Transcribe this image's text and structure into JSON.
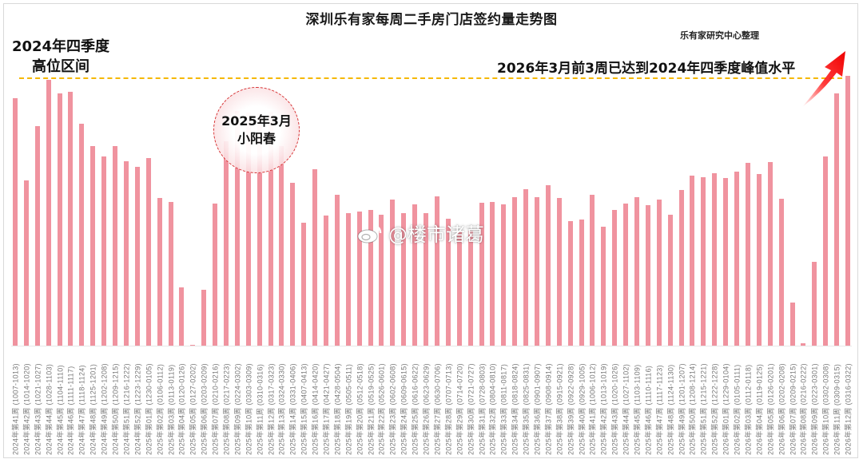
{
  "title": "深圳乐有家每周二手房门店签约量走势图",
  "source": "乐有家研究中心整理",
  "annotations": {
    "left_line1": "2024年四季度",
    "left_line2": "高位区间",
    "right_note": "2026年3月前3周已达到2024年四季度峰值水平",
    "bubble_line1": "2025年3月",
    "bubble_line2": "小阳春"
  },
  "watermark": "@楼市诸葛",
  "colors": {
    "bar": "#f0939f",
    "peak_line": "#f5b800",
    "bubble_border": "#d63031",
    "arrow": "#ff1a1a"
  },
  "chart_data": {
    "type": "bar",
    "title": "深圳乐有家每周二手房门店签约量走势图",
    "xlabel": "",
    "ylabel": "",
    "y_axis_shown": false,
    "value_unit": "relative bar height (px above baseline, no y-axis shown)",
    "grid": false,
    "legend": null,
    "reference_line": {
      "label": "2024年四季度高位区间 / 峰值水平",
      "value": 336,
      "style": "dash-dot",
      "color": "#f5b800"
    },
    "categories": [
      "2024年第41周 (1007-1013)",
      "2024年第42周 (1014-1020)",
      "2024年第43周 (1021-1027)",
      "2024年第44周 (1028-1103)",
      "2024年第45周 (1104-1110)",
      "2024年第46周 (1111-1117)",
      "2024年第47周 (1118-1124)",
      "2024年第48周 (1125-1201)",
      "2024年第49周 (1202-1208)",
      "2024年第50周 (1209-1215)",
      "2024年第51周 (1216-1222)",
      "2024年第52周 (1223-1229)",
      "2025年第01周 (1230-0105)",
      "2025年第02周 (0106-0112)",
      "2025年第03周 (0113-0119)",
      "2025年第04周 (0120-0126)",
      "2025年第05周 (0127-0202)",
      "2025年第06周 (0203-0209)",
      "2025年第07周 (0210-0216)",
      "2025年第08周 (0217-0223)",
      "2025年第09周 (0224-0302)",
      "2025年第10周 (0303-0309)",
      "2025年第11周 (0310-0316)",
      "2025年第12周 (0317-0323)",
      "2025年第13周 (0324-0330)",
      "2025年第14周 (0331-0406)",
      "2025年第15周 (0407-0413)",
      "2025年第16周 (0414-0420)",
      "2025年第17周 (0421-0427)",
      "2025年第18周 (0428-0504)",
      "2025年第19周 (0505-0511)",
      "2025年第20周 (0512-0518)",
      "2025年第21周 (0519-0525)",
      "2025年第22周 (0526-0601)",
      "2025年第23周 (0602-0608)",
      "2025年第24周 (0609-0615)",
      "2025年第25周 (0616-0622)",
      "2025年第26周 (0623-0629)",
      "2025年第27周 (0630-0706)",
      "2025年第28周 (0707-0713)",
      "2025年第29周 (0714-0720)",
      "2025年第30周 (0721-0727)",
      "2025年第31周 (0728-0803)",
      "2025年第32周 (0804-0810)",
      "2025年第33周 (0811-0817)",
      "2025年第34周 (0818-0824)",
      "2025年第35周 (0825-0831)",
      "2025年第36周 (0901-0907)",
      "2025年第37周 (0908-0914)",
      "2025年第38周 (0915-0921)",
      "2025年第39周 (0922-0928)",
      "2025年第40周 (0929-1005)",
      "2025年第41周 (1006-1012)",
      "2025年第42周 (1013-1019)",
      "2025年第43周 (1020-1026)",
      "2025年第44周 (1027-1102)",
      "2025年第45周 (1103-1109)",
      "2025年第46周 (1110-1116)",
      "2025年第47周 (1117-1123)",
      "2025年第48周 (1124-1130)",
      "2025年第49周 (1201-1207)",
      "2025年第50周 (1208-1214)",
      "2025年第51周 (1215-1221)",
      "2025年第52周 (1222-1228)",
      "2026年第01周 (1229-0104)",
      "2026年第02周 (0105-0111)",
      "2026年第03周 (0112-0118)",
      "2026年第04周 (0119-0125)",
      "2026年第05周 (0126-0201)",
      "2026年第06周 (0202-0208)",
      "2026年第07周 (0209-0215)",
      "2026年第08周 (0216-0222)",
      "2026年第09周 (0223-0301)",
      "2026年第10周 (0302-0308)",
      "2026年第11周 (0309-0315)",
      "2026年第12周 (0316-0322)"
    ],
    "values": [
      310,
      207,
      275,
      333,
      316,
      318,
      278,
      250,
      237,
      250,
      231,
      224,
      235,
      185,
      180,
      73,
      1,
      70,
      178,
      256,
      294,
      292,
      291,
      293,
      250,
      204,
      154,
      221,
      163,
      189,
      166,
      168,
      170,
      164,
      183,
      166,
      177,
      166,
      187,
      159,
      144,
      144,
      179,
      180,
      177,
      186,
      196,
      186,
      201,
      185,
      156,
      158,
      189,
      149,
      170,
      178,
      186,
      176,
      183,
      164,
      195,
      213,
      211,
      216,
      210,
      218,
      229,
      215,
      230,
      184,
      54,
      3,
      105,
      237,
      316,
      338
    ],
    "ylim": [
      0,
      345
    ]
  }
}
